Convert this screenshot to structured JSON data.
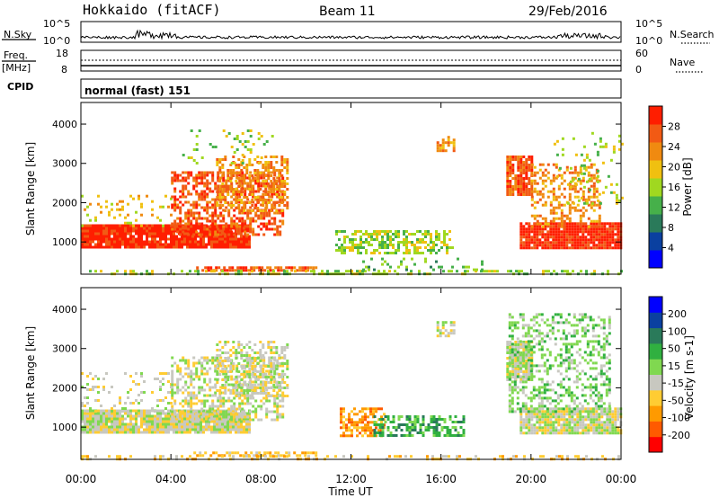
{
  "header": {
    "site": "Hokkaido (fitACF)",
    "beam": "Beam 11",
    "date": "29/Feb/2016"
  },
  "nsky_panel": {
    "label": "N.Sky",
    "left_ticks": [
      "10^5",
      "10^0"
    ],
    "right_ticks": [
      "10^5",
      "10^0"
    ],
    "right_label": "N.Search"
  },
  "freq_panel": {
    "label_line1": "Freq.",
    "label_line2": "[MHz]",
    "left_ticks": [
      "18",
      "8"
    ],
    "right_ticks": [
      "60",
      "0"
    ],
    "right_label": "Nave"
  },
  "cpid_panel": {
    "label": "CPID",
    "mode_text": "normal (fast) 151"
  },
  "x_axis": {
    "tick_labels": [
      "00:00",
      "04:00",
      "08:00",
      "12:00",
      "16:00",
      "20:00",
      "00:00"
    ],
    "label": "Time UT"
  },
  "colors": {
    "power_scale": [
      "#0000ff",
      "#0a40a0",
      "#2a7a5a",
      "#46b04a",
      "#a0d820",
      "#f0c010",
      "#f08a10",
      "#f25a14",
      "#ff1e00"
    ],
    "velocity_scale": [
      "#ff0000",
      "#ff5a00",
      "#ff9a00",
      "#ffcc33",
      "#c8c8c0",
      "#80d850",
      "#30b040",
      "#2a7a5a",
      "#0a40a0",
      "#0000ff"
    ]
  },
  "chart_data": [
    {
      "type": "heatmap",
      "panel": "power",
      "xlabel": "",
      "ylabel": "Slant Range [km]",
      "xlim": [
        0,
        24
      ],
      "ylim": [
        180,
        4550
      ],
      "yticks": [
        "1000",
        "2000",
        "3000",
        "4000"
      ],
      "colorbar_label": "Power [dB]",
      "colorbar_ticks": [
        "4",
        "8",
        "12",
        "16",
        "20",
        "24",
        "28"
      ],
      "colorbar_range": [
        0,
        32
      ],
      "regions": [
        {
          "t0": 0.0,
          "t1": 7.5,
          "r0": 900,
          "r1": 1450,
          "level": 8,
          "density": 0.95
        },
        {
          "t0": 0.0,
          "t1": 4.0,
          "r0": 1400,
          "r1": 2200,
          "level": 5,
          "density": 0.15
        },
        {
          "t0": 4.0,
          "t1": 9.0,
          "r0": 1200,
          "r1": 2800,
          "level": 7,
          "density": 0.55
        },
        {
          "t0": 6.0,
          "t1": 9.2,
          "r0": 1800,
          "r1": 3200,
          "level": 6,
          "density": 0.45
        },
        {
          "t0": 4.5,
          "t1": 8.5,
          "r0": 3000,
          "r1": 4000,
          "level": 4,
          "density": 0.1
        },
        {
          "t0": 5.0,
          "t1": 10.5,
          "r0": 250,
          "r1": 380,
          "level": 7,
          "density": 0.7
        },
        {
          "t0": 0.0,
          "t1": 24.0,
          "r0": 180,
          "r1": 290,
          "level": 4,
          "density": 0.35
        },
        {
          "t0": 11.3,
          "t1": 16.5,
          "r0": 700,
          "r1": 1300,
          "level": 4,
          "density": 0.55
        },
        {
          "t0": 12.5,
          "t1": 18.0,
          "r0": 300,
          "r1": 600,
          "level": 3,
          "density": 0.2
        },
        {
          "t0": 15.8,
          "t1": 16.6,
          "r0": 3300,
          "r1": 3700,
          "level": 6,
          "density": 0.6
        },
        {
          "t0": 18.9,
          "t1": 20.0,
          "r0": 2200,
          "r1": 3200,
          "level": 7,
          "density": 0.85
        },
        {
          "t0": 19.5,
          "t1": 24.0,
          "r0": 850,
          "r1": 1500,
          "level": 8,
          "density": 0.95
        },
        {
          "t0": 20.0,
          "t1": 23.0,
          "r0": 1400,
          "r1": 3000,
          "level": 6,
          "density": 0.4
        },
        {
          "t0": 21.0,
          "t1": 24.0,
          "r0": 2000,
          "r1": 3800,
          "level": 4,
          "density": 0.12
        }
      ]
    },
    {
      "type": "heatmap",
      "panel": "velocity",
      "xlabel": "Time UT",
      "ylabel": "Slant Range [km]",
      "xlim": [
        0,
        24
      ],
      "ylim": [
        180,
        4550
      ],
      "yticks": [
        "1000",
        "2000",
        "3000",
        "4000"
      ],
      "colorbar_label": "Velocity [m s-1]",
      "colorbar_ticks": [
        "-200",
        "-100",
        "-50",
        "-15",
        "15",
        "50",
        "100",
        "200"
      ],
      "colorbar_range": [
        -250,
        250
      ],
      "regions": [
        {
          "t0": 0.0,
          "t1": 7.5,
          "r0": 900,
          "r1": 1450,
          "level": 4,
          "density": 0.95
        },
        {
          "t0": 0.0,
          "t1": 4.0,
          "r0": 1400,
          "r1": 2400,
          "level": 4,
          "density": 0.18
        },
        {
          "t0": 4.0,
          "t1": 9.0,
          "r0": 1200,
          "r1": 2800,
          "level": 4,
          "density": 0.5
        },
        {
          "t0": 6.0,
          "t1": 9.2,
          "r0": 1800,
          "r1": 3200,
          "level": 4,
          "density": 0.45
        },
        {
          "t0": 5.0,
          "t1": 10.5,
          "r0": 250,
          "r1": 380,
          "level": 3,
          "density": 0.6
        },
        {
          "t0": 0.0,
          "t1": 24.0,
          "r0": 180,
          "r1": 290,
          "level": 3,
          "density": 0.3
        },
        {
          "t0": 11.5,
          "t1": 13.5,
          "r0": 800,
          "r1": 1500,
          "level": 2,
          "density": 0.6
        },
        {
          "t0": 13.0,
          "t1": 17.0,
          "r0": 800,
          "r1": 1300,
          "level": 6,
          "density": 0.5
        },
        {
          "t0": 15.8,
          "t1": 16.6,
          "r0": 3300,
          "r1": 3700,
          "level": 4,
          "density": 0.6
        },
        {
          "t0": 18.9,
          "t1": 20.0,
          "r0": 2200,
          "r1": 3200,
          "level": 4,
          "density": 0.85
        },
        {
          "t0": 19.5,
          "t1": 24.0,
          "r0": 850,
          "r1": 1500,
          "level": 4,
          "density": 0.9
        },
        {
          "t0": 19.0,
          "t1": 23.5,
          "r0": 1400,
          "r1": 3900,
          "level": 5,
          "density": 0.4
        }
      ]
    }
  ]
}
